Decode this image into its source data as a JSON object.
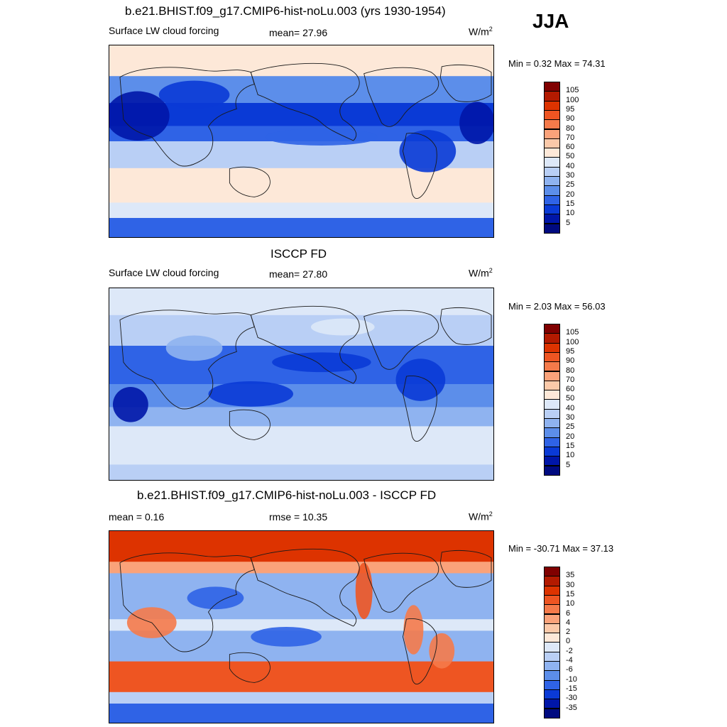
{
  "season": "JJA",
  "panels": [
    {
      "id": "model",
      "title": "b.e21.BHIST.f09_g17.CMIP6-hist-noLu.003 (yrs 1930-1954)",
      "left_label": "Surface LW cloud forcing",
      "center_label": "mean=  27.96",
      "unit_base": "W/m",
      "unit_sup": "2",
      "minmax": "Min =   0.32 Max =  74.31",
      "colorbar": {
        "labels": [
          "105",
          "100",
          "95",
          "90",
          "80",
          "70",
          "60",
          "50",
          "40",
          "30",
          "25",
          "20",
          "15",
          "10",
          "5"
        ],
        "colors": [
          "#800000",
          "#b31a00",
          "#dd3300",
          "#ee5522",
          "#f57a4a",
          "#faa27a",
          "#fbc9a9",
          "#fde8d8",
          "#dde8f8",
          "#b9cff5",
          "#8fb3f0",
          "#5c8eea",
          "#2f63e6",
          "#0a3ad6",
          "#0016a8",
          "#000a80"
        ]
      }
    },
    {
      "id": "obs",
      "title": "ISCCP FD",
      "left_label": "Surface LW cloud forcing",
      "center_label": "mean=  27.80",
      "unit_base": "W/m",
      "unit_sup": "2",
      "minmax": "Min =   2.03 Max =  56.03",
      "colorbar": {
        "labels": [
          "105",
          "100",
          "95",
          "90",
          "80",
          "70",
          "60",
          "50",
          "40",
          "30",
          "25",
          "20",
          "15",
          "10",
          "5"
        ],
        "colors": [
          "#800000",
          "#b31a00",
          "#dd3300",
          "#ee5522",
          "#f57a4a",
          "#faa27a",
          "#fbc9a9",
          "#fde8d8",
          "#dde8f8",
          "#b9cff5",
          "#8fb3f0",
          "#5c8eea",
          "#2f63e6",
          "#0a3ad6",
          "#0016a8",
          "#000a80"
        ]
      }
    },
    {
      "id": "diff",
      "title": "b.e21.BHIST.f09_g17.CMIP6-hist-noLu.003 - ISCCP FD",
      "left_label": "mean =   0.16",
      "center_label": "rmse =  10.35",
      "unit_base": "W/m",
      "unit_sup": "2",
      "minmax": "Min = -30.71 Max =  37.13",
      "colorbar": {
        "labels": [
          "35",
          "30",
          "15",
          "10",
          "6",
          "4",
          "2",
          "0",
          "-2",
          "-4",
          "-6",
          "-10",
          "-15",
          "-30",
          "-35"
        ],
        "colors": [
          "#800000",
          "#b31a00",
          "#dd3300",
          "#ee5522",
          "#f57a4a",
          "#faa27a",
          "#fbc9a9",
          "#fde8d8",
          "#dde8f8",
          "#b9cff5",
          "#8fb3f0",
          "#5c8eea",
          "#2f63e6",
          "#0a3ad6",
          "#0016a8",
          "#000a80"
        ]
      }
    }
  ]
}
